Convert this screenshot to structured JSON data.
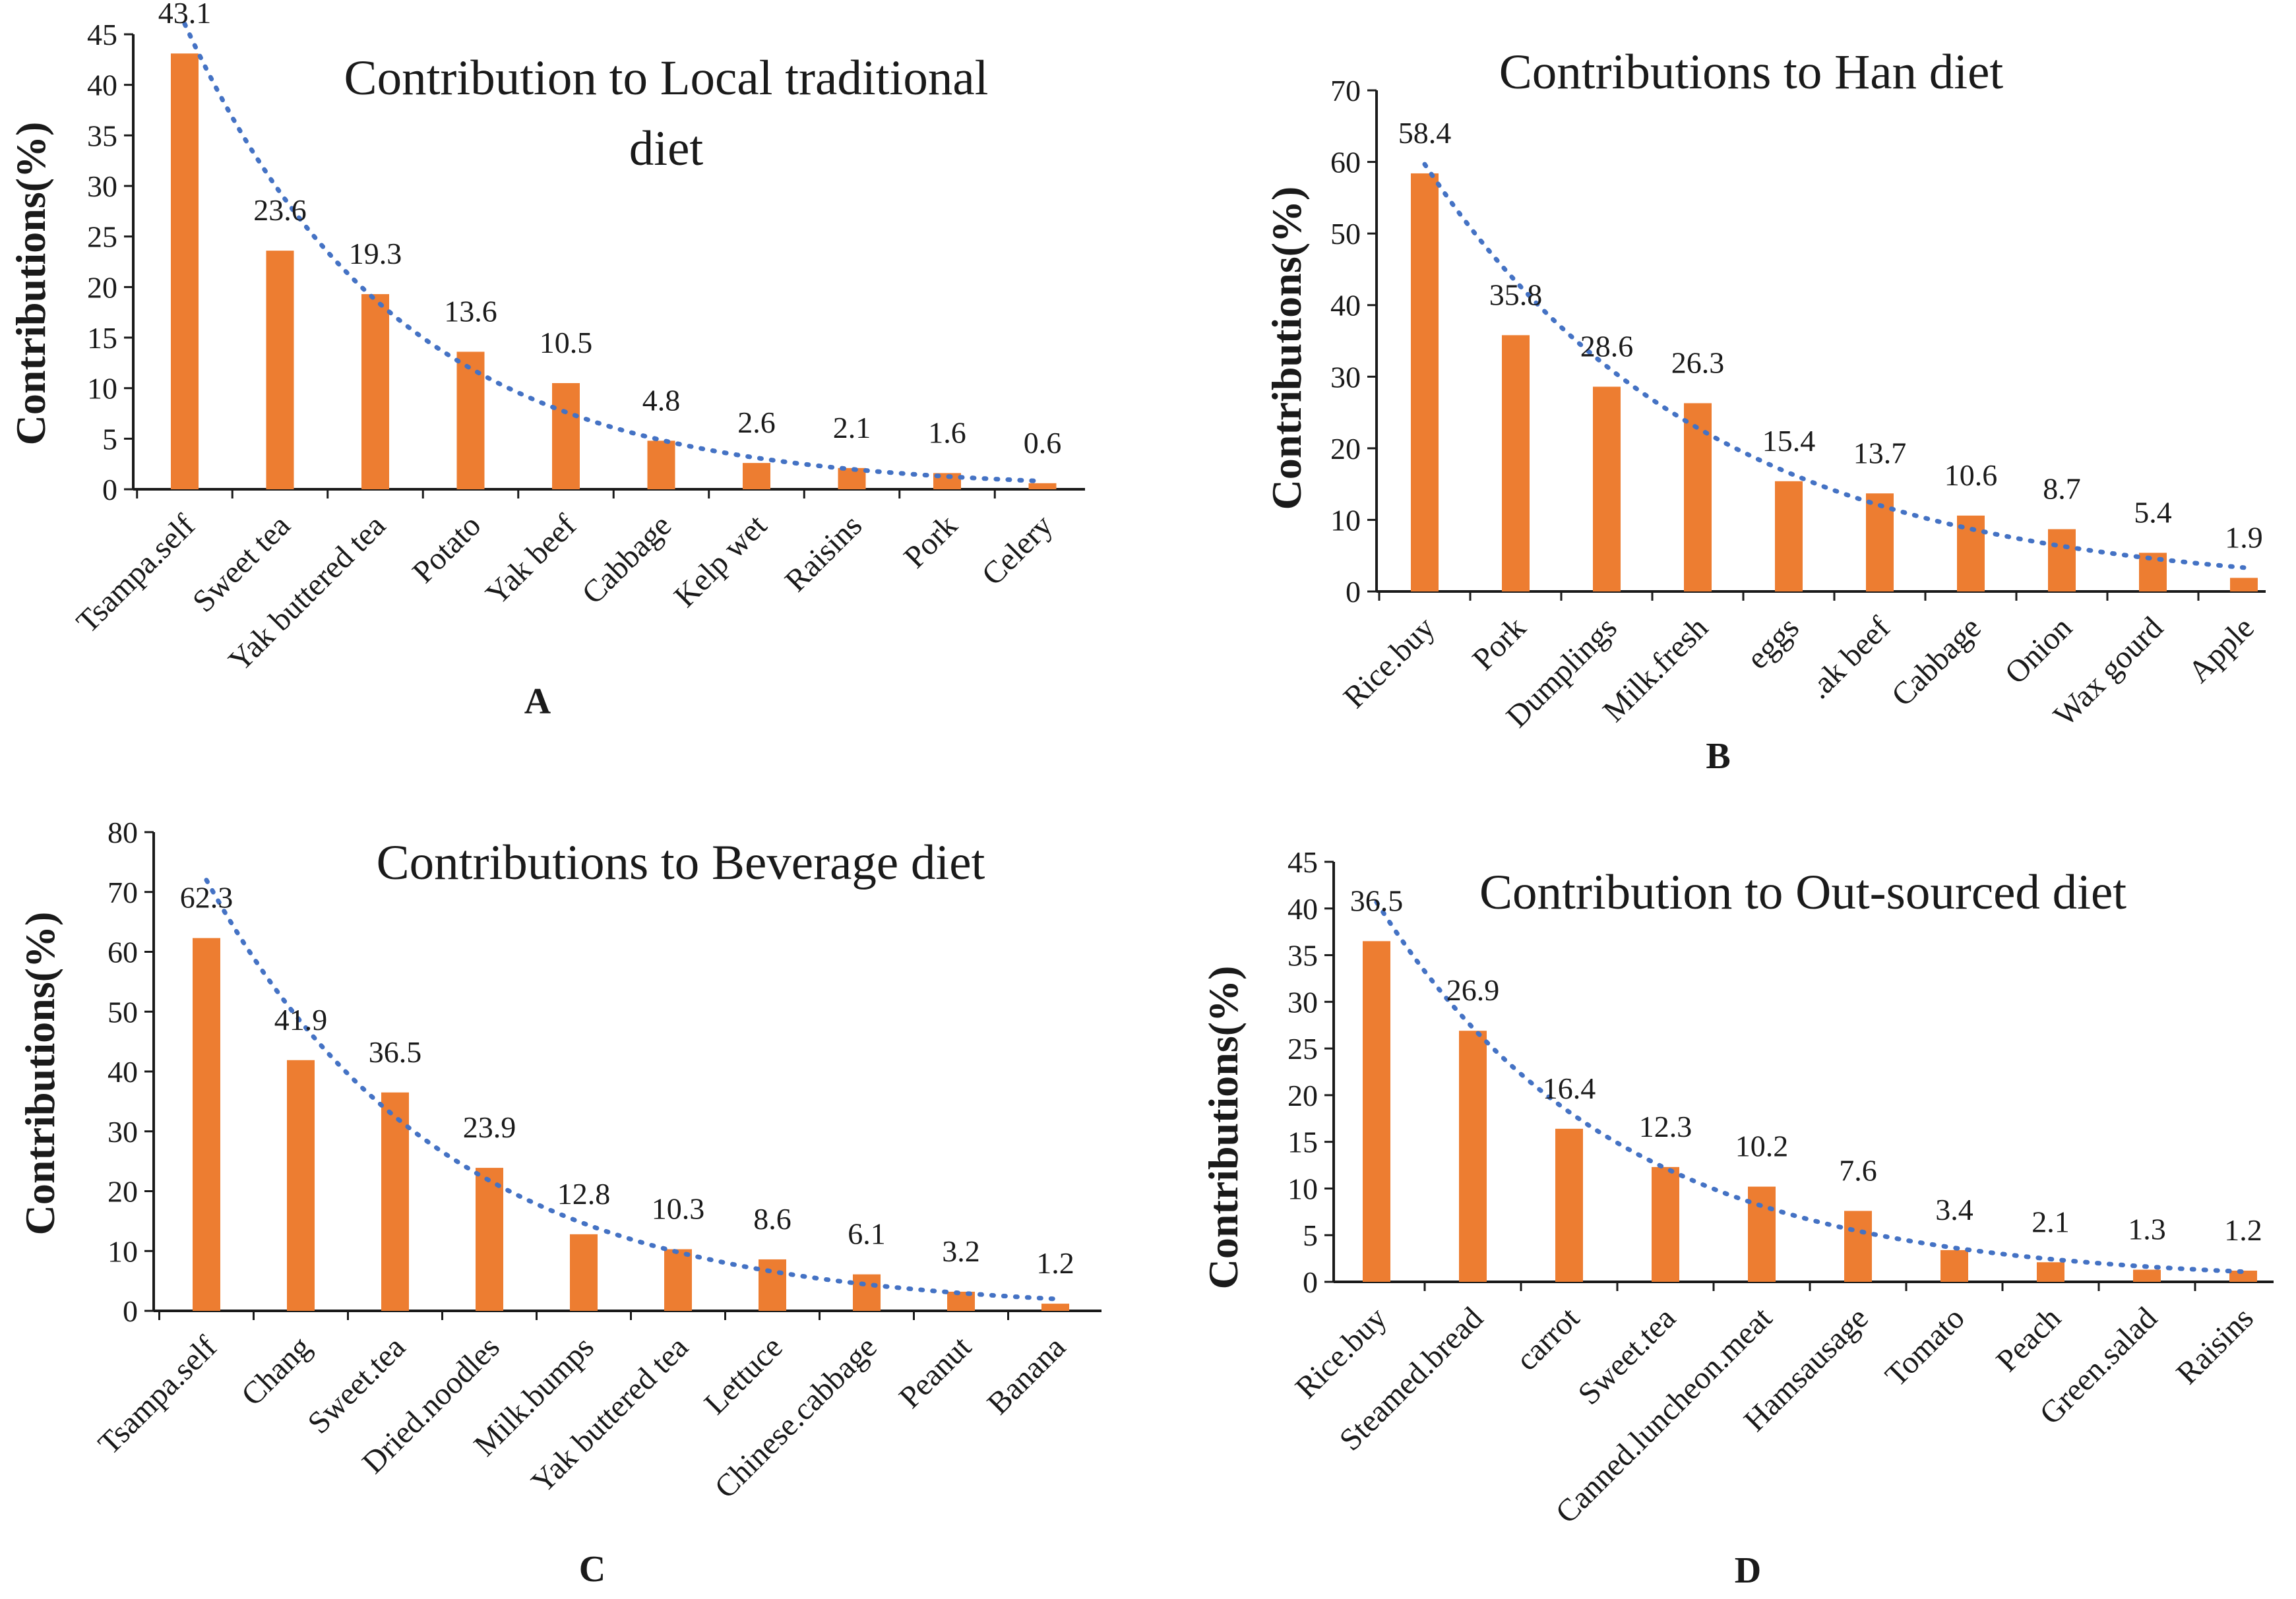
{
  "colors": {
    "bar": "#ED7D31",
    "trend": "#4472C4",
    "axis": "#1a1a1a"
  },
  "y_axis_label": "Contributions(%)",
  "chart_data": [
    {
      "type": "bar",
      "panel": "A",
      "title_lines": [
        "Contribution to Local traditional",
        "diet"
      ],
      "ylabel": "Contributions(%)",
      "ylim": [
        0,
        45
      ],
      "yticks": [
        0,
        5,
        10,
        15,
        20,
        25,
        30,
        35,
        40,
        45
      ],
      "categories": [
        "Tsampa.self",
        "Sweet tea",
        "Yak buttered tea",
        "Potato",
        "Yak beef",
        "Cabbage",
        "Kelp wet",
        "Raisins",
        "Pork",
        "Celery"
      ],
      "values": [
        43.1,
        23.6,
        19.3,
        13.6,
        10.5,
        4.8,
        2.6,
        2.1,
        1.6,
        0.6
      ],
      "value_labels": [
        "43.1",
        "23.6",
        "19.3",
        "13.6",
        "10.5",
        "4.8",
        "2.6",
        "2.1",
        "1.6",
        "0.6"
      ],
      "trendline": "exponential, dotted"
    },
    {
      "type": "bar",
      "panel": "B",
      "title_lines": [
        "Contributions to Han diet"
      ],
      "ylabel": "Contributions(%)",
      "ylim": [
        0,
        70
      ],
      "yticks": [
        0,
        10,
        20,
        30,
        40,
        50,
        60,
        70
      ],
      "categories": [
        "Rice.buy",
        "Pork",
        "Dumplings",
        "Milk.fresh",
        "eggs",
        ".ak beef",
        "Cabbage",
        "Onion",
        "Wax gourd",
        "Apple"
      ],
      "values": [
        58.4,
        35.8,
        28.6,
        26.3,
        15.4,
        13.7,
        10.6,
        8.7,
        5.4,
        1.9
      ],
      "value_labels": [
        "58.4",
        "35.8",
        "28.6",
        "26.3",
        "15.4",
        "13.7",
        "10.6",
        "8.7",
        "5.4",
        "1.9"
      ],
      "trendline": "exponential, dotted"
    },
    {
      "type": "bar",
      "panel": "C",
      "title_lines": [
        "Contributions to Beverage diet"
      ],
      "ylabel": "Contributions(%)",
      "ylim": [
        0,
        80
      ],
      "yticks": [
        0,
        10,
        20,
        30,
        40,
        50,
        60,
        70,
        80
      ],
      "categories": [
        "Tsampa.self",
        "Chang",
        "Sweet.tea",
        "Dried.noodles",
        "Milk.bumps",
        "Yak buttered tea",
        "Lettuce",
        "Chinese.cabbage",
        "Peanut",
        "Banana"
      ],
      "values": [
        62.3,
        41.9,
        36.5,
        23.9,
        12.8,
        10.3,
        8.6,
        6.1,
        3.2,
        1.2
      ],
      "value_labels": [
        "62.3",
        "41.9",
        "36.5",
        "23.9",
        "12.8",
        "10.3",
        "8.6",
        "6.1",
        "3.2",
        "1.2"
      ],
      "trendline": "exponential, dotted"
    },
    {
      "type": "bar",
      "panel": "D",
      "title_lines": [
        "Contribution to Out-sourced diet"
      ],
      "ylabel": "Contributions(%)",
      "ylim": [
        0,
        45
      ],
      "yticks": [
        0,
        5,
        10,
        15,
        20,
        25,
        30,
        35,
        40,
        45
      ],
      "categories": [
        "Rice.buy",
        "Steamed.bread",
        "carrot",
        "Sweet.tea",
        "Canned.luncheon.meat",
        "Hamsausage",
        "Tomato",
        "Peach",
        "Green.salad",
        "Raisins"
      ],
      "values": [
        36.5,
        26.9,
        16.4,
        12.3,
        10.2,
        7.6,
        3.4,
        2.1,
        1.3,
        1.2
      ],
      "value_labels": [
        "36.5",
        "26.9",
        "16.4",
        "12.3",
        "10.2",
        "7.6",
        "3.4",
        "2.1",
        "1.3",
        "1.2"
      ],
      "trendline": "exponential, dotted"
    }
  ]
}
